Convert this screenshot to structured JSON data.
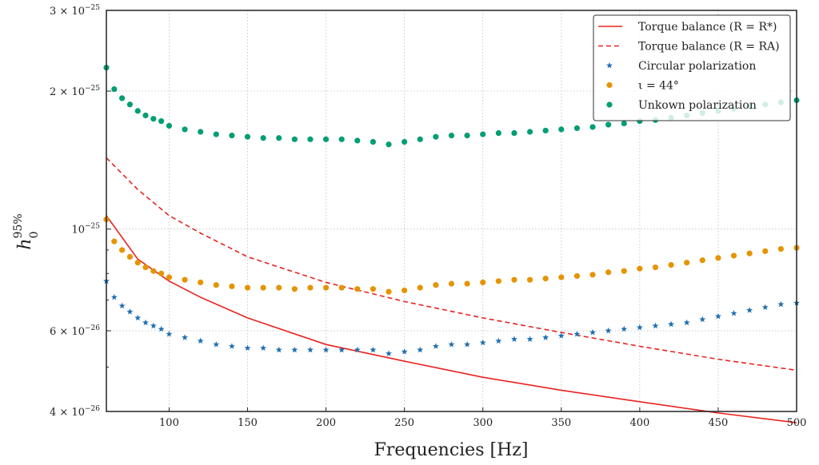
{
  "chart_data": {
    "type": "scatter",
    "xlabel": "Frequencies [Hz]",
    "ylabel": "h0^95%",
    "xlim": [
      60,
      500
    ],
    "ylim": [
      4e-26,
      3e-25
    ],
    "yscale": "log",
    "grid": true,
    "legend_position": "top-right",
    "x_ticks": [
      100,
      150,
      200,
      250,
      300,
      350,
      400,
      450,
      500
    ],
    "x_tick_labels": [
      "100",
      "150",
      "200",
      "250",
      "300",
      "350",
      "400",
      "450",
      "500"
    ],
    "y_ticks": [
      4e-26,
      6e-26,
      1e-25,
      2e-25,
      3e-25
    ],
    "y_tick_labels": [
      {
        "mantissa": "4 × 10",
        "exp": "−26"
      },
      {
        "mantissa": "6 × 10",
        "exp": "−26"
      },
      {
        "mantissa": "10",
        "exp": "−25"
      },
      {
        "mantissa": "2 × 10",
        "exp": "−25"
      },
      {
        "mantissa": "3 × 10",
        "exp": "−25"
      }
    ],
    "series": [
      {
        "name": "Torque balance (R = R*)",
        "kind": "line",
        "style": "solid",
        "color": "#e8231f",
        "x": [
          60,
          80,
          100,
          120,
          150,
          200,
          250,
          300,
          350,
          400,
          450,
          500
        ],
        "y": [
          1.07e-25,
          8.6e-26,
          7.7e-26,
          7.1e-26,
          6.4e-26,
          5.6e-26,
          5.15e-26,
          4.75e-26,
          4.45e-26,
          4.2e-26,
          3.97e-26,
          3.78e-26
        ]
      },
      {
        "name": "Torque balance (R = RA)",
        "kind": "line",
        "style": "dashed",
        "color": "#e8231f",
        "x": [
          60,
          80,
          100,
          120,
          150,
          200,
          250,
          300,
          350,
          400,
          450,
          500
        ],
        "y": [
          1.43e-25,
          1.22e-25,
          1.07e-25,
          9.8e-26,
          8.7e-26,
          7.65e-26,
          6.95e-26,
          6.4e-26,
          5.95e-26,
          5.55e-26,
          5.2e-26,
          4.92e-26
        ]
      },
      {
        "name": "Circular polarization",
        "kind": "scatter",
        "marker": "star",
        "color": "#1f6fb0",
        "x": [
          60,
          65,
          70,
          75,
          80,
          85,
          90,
          95,
          100,
          110,
          120,
          130,
          140,
          150,
          160,
          170,
          180,
          190,
          200,
          210,
          220,
          230,
          240,
          250,
          260,
          270,
          280,
          290,
          300,
          310,
          320,
          330,
          340,
          350,
          360,
          370,
          380,
          390,
          400,
          410,
          420,
          430,
          440,
          450,
          460,
          470,
          480,
          490,
          500
        ],
        "y": [
          7.7e-26,
          7.1e-26,
          6.8e-26,
          6.6e-26,
          6.4e-26,
          6.25e-26,
          6.15e-26,
          6.05e-26,
          5.9e-26,
          5.8e-26,
          5.7e-26,
          5.6e-26,
          5.55e-26,
          5.5e-26,
          5.5e-26,
          5.45e-26,
          5.45e-26,
          5.45e-26,
          5.45e-26,
          5.45e-26,
          5.45e-26,
          5.45e-26,
          5.35e-26,
          5.4e-26,
          5.45e-26,
          5.55e-26,
          5.6e-26,
          5.6e-26,
          5.65e-26,
          5.7e-26,
          5.75e-26,
          5.75e-26,
          5.8e-26,
          5.85e-26,
          5.9e-26,
          5.95e-26,
          6e-26,
          6.05e-26,
          6.1e-26,
          6.15e-26,
          6.2e-26,
          6.25e-26,
          6.35e-26,
          6.45e-26,
          6.55e-26,
          6.65e-26,
          6.75e-26,
          6.85e-26,
          6.9e-26
        ]
      },
      {
        "name": "ι = 44°",
        "kind": "scatter",
        "marker": "circle",
        "color": "#e59400",
        "x": [
          60,
          65,
          70,
          75,
          80,
          85,
          90,
          95,
          100,
          110,
          120,
          130,
          140,
          150,
          160,
          170,
          180,
          190,
          200,
          210,
          220,
          230,
          240,
          250,
          260,
          270,
          280,
          290,
          300,
          310,
          320,
          330,
          340,
          350,
          360,
          370,
          380,
          390,
          400,
          410,
          420,
          430,
          440,
          450,
          460,
          470,
          480,
          490,
          500
        ],
        "y": [
          1.05e-25,
          9.4e-26,
          9e-26,
          8.7e-26,
          8.45e-26,
          8.25e-26,
          8.1e-26,
          8e-26,
          7.85e-26,
          7.75e-26,
          7.65e-26,
          7.55e-26,
          7.5e-26,
          7.45e-26,
          7.45e-26,
          7.45e-26,
          7.4e-26,
          7.45e-26,
          7.45e-26,
          7.45e-26,
          7.4e-26,
          7.4e-26,
          7.3e-26,
          7.35e-26,
          7.45e-26,
          7.55e-26,
          7.6e-26,
          7.6e-26,
          7.65e-26,
          7.7e-26,
          7.75e-26,
          7.75e-26,
          7.8e-26,
          7.85e-26,
          7.9e-26,
          7.95e-26,
          8.05e-26,
          8.1e-26,
          8.2e-26,
          8.25e-26,
          8.35e-26,
          8.45e-26,
          8.55e-26,
          8.65e-26,
          8.75e-26,
          8.85e-26,
          8.95e-26,
          9.05e-26,
          9.1e-26
        ]
      },
      {
        "name": "Unkown polarization",
        "kind": "scatter",
        "marker": "circle",
        "color": "#009e73",
        "x": [
          60,
          65,
          70,
          75,
          80,
          85,
          90,
          95,
          100,
          110,
          120,
          130,
          140,
          150,
          160,
          170,
          180,
          190,
          200,
          210,
          220,
          230,
          240,
          250,
          260,
          270,
          280,
          290,
          300,
          310,
          320,
          330,
          340,
          350,
          360,
          370,
          380,
          390,
          400,
          410,
          420,
          430,
          440,
          450,
          460,
          470,
          480,
          490,
          500
        ],
        "y": [
          2.25e-25,
          2.02e-25,
          1.93e-25,
          1.87e-25,
          1.81e-25,
          1.77e-25,
          1.74e-25,
          1.72e-25,
          1.68e-25,
          1.65e-25,
          1.63e-25,
          1.61e-25,
          1.6e-25,
          1.59e-25,
          1.58e-25,
          1.58e-25,
          1.57e-25,
          1.57e-25,
          1.57e-25,
          1.57e-25,
          1.56e-25,
          1.55e-25,
          1.53e-25,
          1.55e-25,
          1.57e-25,
          1.59e-25,
          1.6e-25,
          1.6e-25,
          1.61e-25,
          1.62e-25,
          1.62e-25,
          1.63e-25,
          1.64e-25,
          1.65e-25,
          1.66e-25,
          1.67e-25,
          1.69e-25,
          1.7e-25,
          1.72e-25,
          1.73e-25,
          1.75e-25,
          1.77e-25,
          1.79e-25,
          1.81e-25,
          1.83e-25,
          1.85e-25,
          1.87e-25,
          1.89e-25,
          1.91e-25
        ]
      }
    ],
    "legend": [
      {
        "label": "Torque balance (R = R*)",
        "series": 0
      },
      {
        "label": "Torque balance (R = RA)",
        "series": 1
      },
      {
        "label": "Circular polarization",
        "series": 2
      },
      {
        "label": "ι = 44°",
        "series": 3
      },
      {
        "label": "Unkown polarization",
        "series": 4
      }
    ]
  }
}
